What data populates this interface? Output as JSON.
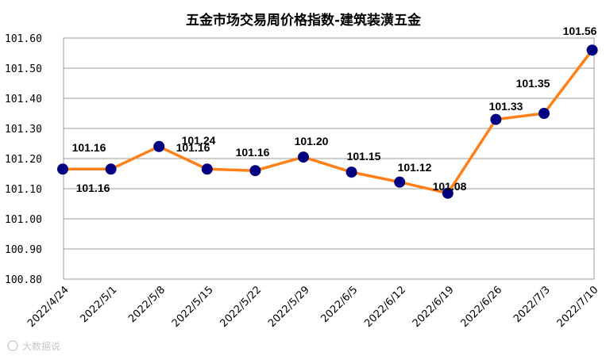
{
  "chart_data": {
    "type": "line",
    "title": "五金市场交易周价格指数-建筑装潢五金",
    "categories": [
      "2022/4/24",
      "2022/5/1",
      "2022/5/8",
      "2022/5/15",
      "2022/5/22",
      "2022/5/29",
      "2022/6/5",
      "2022/6/12",
      "2022/6/19",
      "2022/6/26",
      "2022/7/3",
      "2022/7/10"
    ],
    "values": [
      101.165,
      101.165,
      101.24,
      101.165,
      101.16,
      101.205,
      101.155,
      101.122,
      101.085,
      101.33,
      101.35,
      101.56
    ],
    "data_labels": [
      "",
      "101.16",
      "",
      "101.16",
      "101.16",
      "101.20",
      "101.15",
      "101.12",
      "101.08",
      "101.33",
      "101.35",
      "101.56"
    ],
    "extra_labels": [
      "101.16",
      "101.24"
    ],
    "y_ticks": [
      "100.80",
      "100.90",
      "101.00",
      "101.10",
      "101.20",
      "101.30",
      "101.40",
      "101.50",
      "101.60"
    ],
    "ylim": [
      100.8,
      101.6
    ],
    "grid": true,
    "line_color": "#FF8019",
    "marker_color": "#000080"
  },
  "watermark": "大数据说"
}
